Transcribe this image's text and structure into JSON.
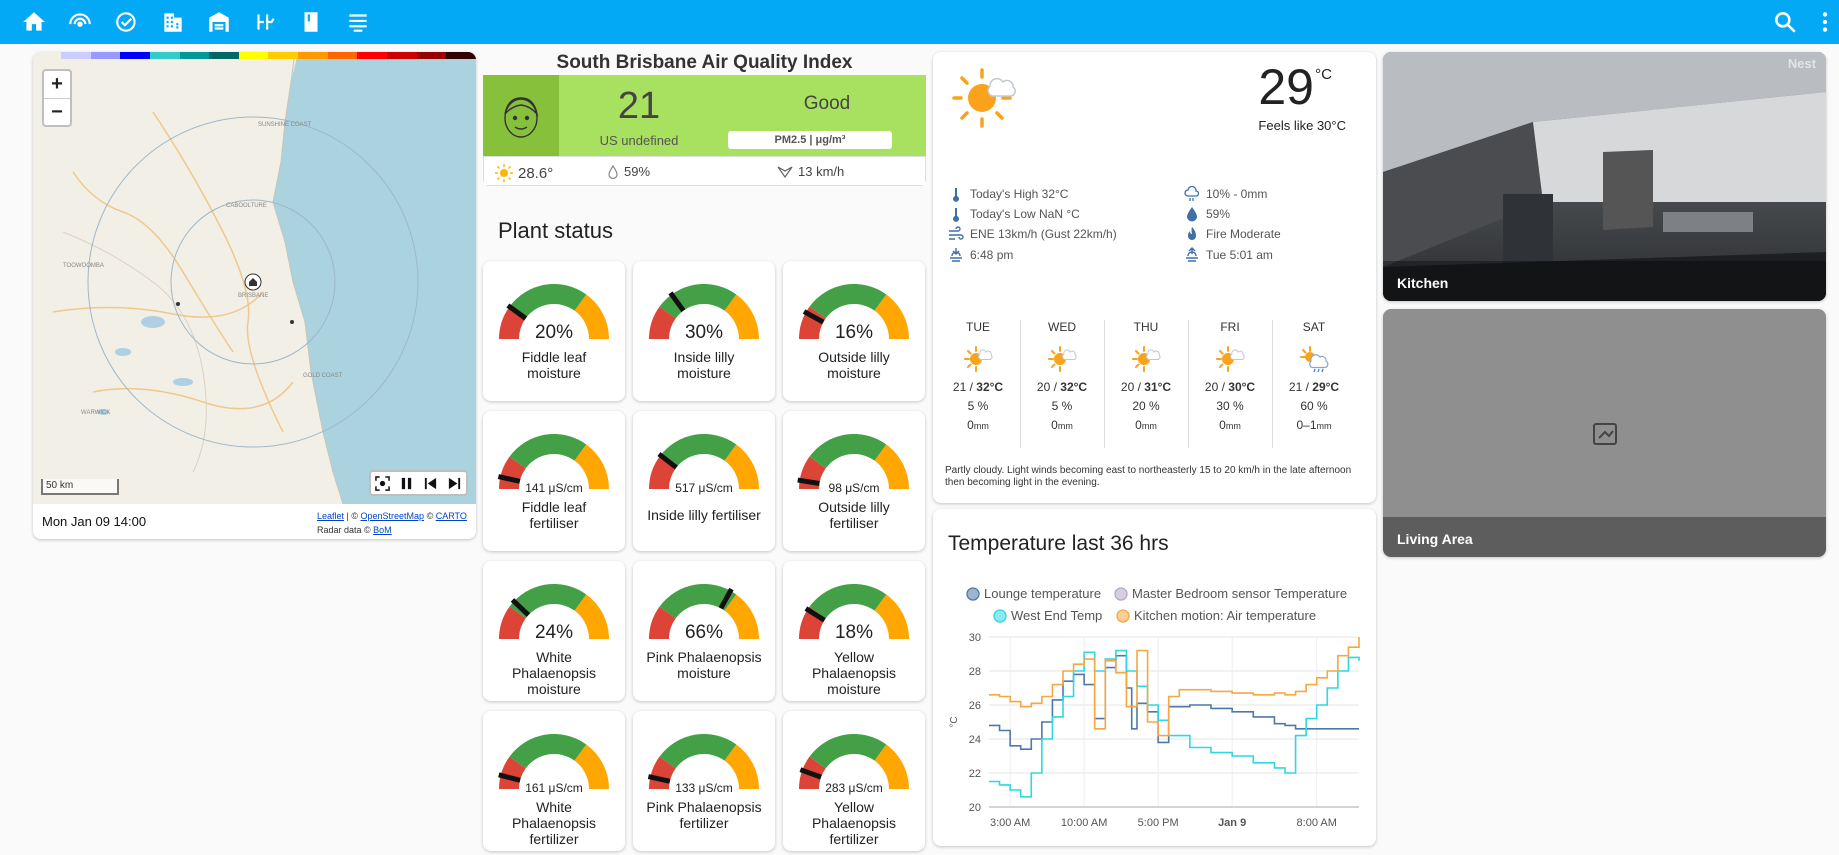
{
  "topbar": {
    "icons": [
      "home-icon",
      "radar-icon",
      "tasks-icon",
      "building-icon",
      "warehouse-icon",
      "pv-icon",
      "book-icon",
      "hvac-icon"
    ],
    "search_icon": "search-icon",
    "menu_icon": "more-vert-icon"
  },
  "map": {
    "timestamp": "Mon Jan 09 14:00",
    "scale": "50 km",
    "zoom_in": "+",
    "zoom_out": "−",
    "attribution_leaflet": "Leaflet",
    "attribution_sep1": " | © ",
    "attribution_osm": "OpenStreetMap",
    "attribution_sep2": " © ",
    "attribution_carto": "CARTO",
    "radar_data": "Radar data © ",
    "radar_bom": "BoM",
    "places": [
      "SUNSHINE COAST",
      "CABOOLTURE",
      "TOOWOOMBA",
      "BRISBANE",
      "GOLD COAST",
      "WARWICK"
    ],
    "legend_colors": [
      "#ccccff",
      "#9999ff",
      "#0000ff",
      "#33cccc",
      "#009999",
      "#006666",
      "#ffff00",
      "#ffcc00",
      "#ff9900",
      "#ff6600",
      "#ff0000",
      "#cc0000",
      "#990000",
      "#330000"
    ]
  },
  "aqi": {
    "title": "South Brisbane Air Quality Index",
    "value": "21",
    "unit": "US undefined",
    "status": "Good",
    "pollutant": "PM2.5 | μg/m³",
    "temperature": "28.6°",
    "humidity": "59%",
    "wind": "13 km/h",
    "colors": {
      "band": "#a8e05f",
      "face": "#87c13c"
    }
  },
  "plants": {
    "title": "Plant status",
    "gauges": [
      {
        "value": 0.2,
        "display": "20%",
        "label": [
          "Fiddle leaf",
          "moisture"
        ]
      },
      {
        "value": 0.3,
        "display": "30%",
        "label": [
          "Inside lilly",
          "moisture"
        ]
      },
      {
        "value": 0.16,
        "display": "16%",
        "label": [
          "Outside lilly",
          "moisture"
        ]
      },
      {
        "value": 0.07,
        "display": "141 μS/cm",
        "label": [
          "Fiddle leaf",
          "fertiliser"
        ]
      },
      {
        "value": 0.21,
        "display": "517 μS/cm",
        "label": [
          "Inside lilly fertiliser"
        ]
      },
      {
        "value": 0.05,
        "display": "98 μS/cm",
        "label": [
          "Outside lilly",
          "fertiliser"
        ]
      },
      {
        "value": 0.24,
        "display": "24%",
        "label": [
          "White",
          "Phalaenopsis",
          "moisture"
        ]
      },
      {
        "value": 0.66,
        "display": "66%",
        "label": [
          "Pink Phalaenopsis",
          "moisture"
        ]
      },
      {
        "value": 0.18,
        "display": "18%",
        "label": [
          "Yellow",
          "Phalaenopsis",
          "moisture"
        ]
      },
      {
        "value": 0.08,
        "display": "161 μS/cm",
        "label": [
          "White",
          "Phalaenopsis",
          "fertilizer"
        ]
      },
      {
        "value": 0.07,
        "display": "133 μS/cm",
        "label": [
          "Pink Phalaenopsis",
          "fertilizer"
        ]
      },
      {
        "value": 0.11,
        "display": "283 μS/cm",
        "label": [
          "Yellow",
          "Phalaenopsis",
          "fertilizer"
        ]
      }
    ],
    "colors": {
      "low": "#db4437",
      "mid": "#43a047",
      "high": "#ffa600"
    }
  },
  "weather": {
    "temperature": "29",
    "unit": "°C",
    "feels_like": "Feels like 30°C",
    "attributes_left": [
      {
        "icon": "thermometer-icon",
        "text": "Today's High 32°C"
      },
      {
        "icon": "thermometer-icon",
        "text": "Today's Low NaN °C"
      },
      {
        "icon": "wind-icon",
        "text": "ENE 13km/h (Gust 22km/h)"
      },
      {
        "icon": "sunset-icon",
        "text": "6:48 pm"
      }
    ],
    "attributes_right": [
      {
        "icon": "rain-cloud-icon",
        "text": "10% - 0mm"
      },
      {
        "icon": "humidity-icon",
        "text": "59%"
      },
      {
        "icon": "fire-icon",
        "text": "Fire Moderate"
      },
      {
        "icon": "sunrise-icon",
        "text": "Tue 5:01 am"
      }
    ],
    "forecast": [
      {
        "day": "TUE",
        "low": "21",
        "high": "32°C",
        "chance": "5 %",
        "rain_amount": "0",
        "rain_unit": "mm",
        "icon": "partly-sunny-icon"
      },
      {
        "day": "WED",
        "low": "20",
        "high": "32°C",
        "chance": "5 %",
        "rain_amount": "0",
        "rain_unit": "mm",
        "icon": "partly-sunny-icon"
      },
      {
        "day": "THU",
        "low": "20",
        "high": "31°C",
        "chance": "20 %",
        "rain_amount": "0",
        "rain_unit": "mm",
        "icon": "partly-sunny-icon"
      },
      {
        "day": "FRI",
        "low": "20",
        "high": "30°C",
        "chance": "30 %",
        "rain_amount": "0",
        "rain_unit": "mm",
        "icon": "partly-sunny-icon"
      },
      {
        "day": "SAT",
        "low": "21",
        "high": "29°C",
        "chance": "60 %",
        "rain_amount": "0–1",
        "rain_unit": "mm",
        "icon": "shower-icon"
      }
    ],
    "description": "Partly cloudy. Light winds becoming east to northeasterly 15 to 20 km/h in the late afternoon then becoming light in the evening."
  },
  "chart_data": {
    "type": "line",
    "title": "Temperature last 36 hrs",
    "ylabel": "°C",
    "ylim": [
      20,
      30
    ],
    "yticks": [
      "20",
      "22",
      "24",
      "26",
      "28",
      "30"
    ],
    "xlim": [
      1,
      36
    ],
    "xticks": [
      {
        "x": 3,
        "label": "3:00 AM"
      },
      {
        "x": 10,
        "label": "10:00 AM"
      },
      {
        "x": 17,
        "label": "5:00 PM"
      },
      {
        "x": 24,
        "label": "Jan 9"
      },
      {
        "x": 32,
        "label": "8:00 AM"
      }
    ],
    "series": [
      {
        "name": "Lounge temperature",
        "color": "#4e79a7",
        "points": [
          [
            1,
            24.8
          ],
          [
            2,
            24.5
          ],
          [
            3,
            23.6
          ],
          [
            4,
            23.4
          ],
          [
            5,
            24.0
          ],
          [
            6,
            25.0
          ],
          [
            7,
            26.3
          ],
          [
            8,
            27.4
          ],
          [
            9,
            27.8
          ],
          [
            10,
            27.2
          ],
          [
            11,
            25.2
          ],
          [
            12,
            28.2
          ],
          [
            13,
            28.9
          ],
          [
            14,
            27.0
          ],
          [
            14.5,
            24.6
          ],
          [
            15,
            26.1
          ],
          [
            16,
            25.6
          ],
          [
            17,
            23.8
          ],
          [
            18,
            25.9
          ],
          [
            20,
            26.0
          ],
          [
            22,
            25.8
          ],
          [
            24,
            25.6
          ],
          [
            26,
            25.3
          ],
          [
            28,
            24.9
          ],
          [
            29,
            24.8
          ],
          [
            30,
            24.6
          ],
          [
            32,
            24.6
          ],
          [
            34,
            24.6
          ],
          [
            36,
            24.6
          ]
        ]
      },
      {
        "name": "Master Bedroom sensor Temperature",
        "color": "#b4a7c6",
        "points": []
      },
      {
        "name": "West End Temp",
        "color": "#2fd7e1",
        "points": [
          [
            1,
            21.5
          ],
          [
            2,
            21.3
          ],
          [
            3,
            21.0
          ],
          [
            4,
            20.6
          ],
          [
            5,
            22.0
          ],
          [
            6,
            24.0
          ],
          [
            7,
            25.3
          ],
          [
            8,
            26.5
          ],
          [
            9,
            28.0
          ],
          [
            10,
            29.1
          ],
          [
            11,
            28.0
          ],
          [
            12,
            28.7
          ],
          [
            13,
            29.2
          ],
          [
            14,
            28.0
          ],
          [
            15,
            27.1
          ],
          [
            16,
            26.0
          ],
          [
            17,
            25.1
          ],
          [
            18,
            24.2
          ],
          [
            20,
            23.5
          ],
          [
            22,
            23.2
          ],
          [
            24,
            23.0
          ],
          [
            26,
            22.6
          ],
          [
            28,
            22.3
          ],
          [
            29,
            22.0
          ],
          [
            30,
            24.2
          ],
          [
            31,
            25.2
          ],
          [
            32,
            26.0
          ],
          [
            33,
            27.0
          ],
          [
            34,
            28.0
          ],
          [
            35,
            28.8
          ],
          [
            36,
            28.6
          ]
        ]
      },
      {
        "name": "Kitchen motion: Air temperature",
        "color": "#f5a742",
        "points": [
          [
            1,
            26.6
          ],
          [
            2,
            26.5
          ],
          [
            3,
            26.2
          ],
          [
            4,
            25.9
          ],
          [
            5,
            26.1
          ],
          [
            6,
            26.5
          ],
          [
            7,
            27.2
          ],
          [
            8,
            28.0
          ],
          [
            9,
            28.4
          ],
          [
            10,
            28.7
          ],
          [
            11,
            24.6
          ],
          [
            12,
            28.6
          ],
          [
            13,
            27.9
          ],
          [
            14,
            25.9
          ],
          [
            15,
            29.2
          ],
          [
            16,
            25.0
          ],
          [
            17,
            24.2
          ],
          [
            18,
            26.5
          ],
          [
            19,
            26.9
          ],
          [
            20,
            26.9
          ],
          [
            22,
            26.8
          ],
          [
            24,
            26.7
          ],
          [
            26,
            26.6
          ],
          [
            27,
            26.6
          ],
          [
            28,
            26.7
          ],
          [
            29,
            26.6
          ],
          [
            30,
            26.8
          ],
          [
            31,
            27.2
          ],
          [
            32,
            27.6
          ],
          [
            33,
            28.0
          ],
          [
            34,
            28.9
          ],
          [
            35,
            29.4
          ],
          [
            36,
            30.0
          ]
        ]
      }
    ]
  },
  "cameras": [
    {
      "name": "Kitchen",
      "watermark": "Nest"
    },
    {
      "name": "Living Area"
    }
  ]
}
